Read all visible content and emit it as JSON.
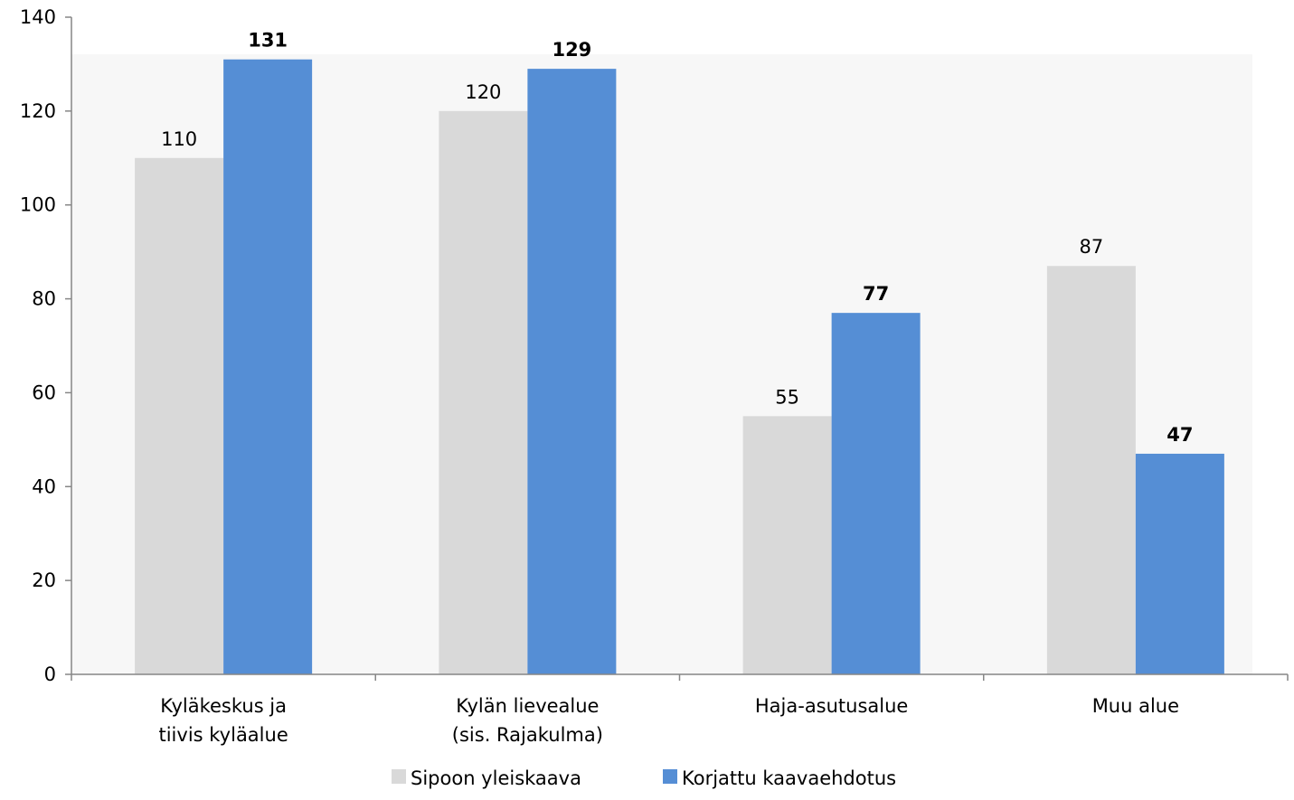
{
  "chart_data": {
    "type": "bar",
    "categories": [
      [
        "Kyläkeskus ja",
        "tiivis kyläalue"
      ],
      [
        "Kylän lievealue",
        "(sis. Rajakulma)"
      ],
      [
        "Haja-asutusalue"
      ],
      [
        "Muu alue"
      ]
    ],
    "series": [
      {
        "name": "Sipoon yleiskaava",
        "values": [
          110,
          120,
          55,
          87
        ],
        "color": "#d9d9d9",
        "label_bold": false
      },
      {
        "name": "Korjattu kaavaehdotus",
        "values": [
          131,
          129,
          77,
          47
        ],
        "color": "#558ed5",
        "label_bold": true
      }
    ],
    "ylim": [
      0,
      140
    ],
    "yticks": [
      0,
      20,
      40,
      60,
      80,
      100,
      120,
      140
    ],
    "title": "",
    "xlabel": "",
    "ylabel": "",
    "grid": false,
    "legend_position": "bottom",
    "data_labels": true
  }
}
